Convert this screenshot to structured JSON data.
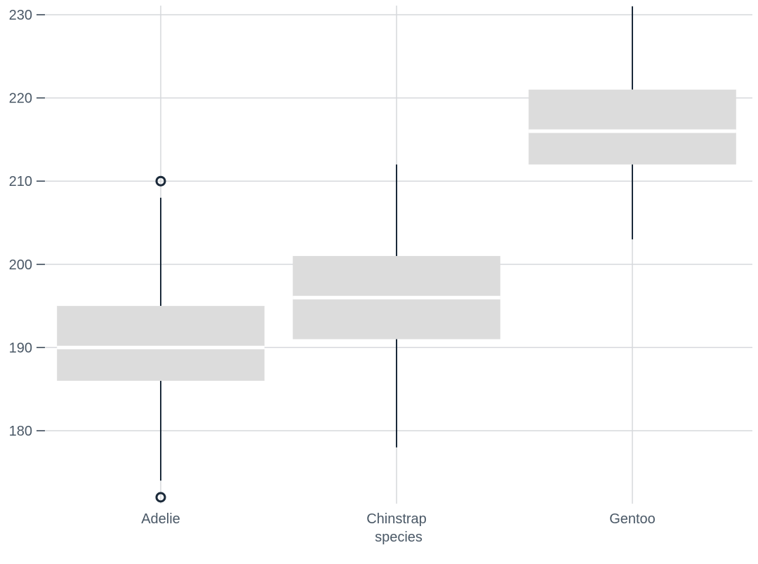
{
  "chart_data": {
    "type": "box",
    "xlabel": "species",
    "ylabel": "",
    "ylim": [
      171,
      231
    ],
    "yticks": [
      180,
      190,
      200,
      210,
      220,
      230
    ],
    "ytick_labels": [
      "180",
      "190",
      "200",
      "210",
      "220",
      "230"
    ],
    "grid": true,
    "categories": [
      "Adelie",
      "Chinstrap",
      "Gentoo"
    ],
    "boxes": [
      {
        "category": "Adelie",
        "whisker_low": 174,
        "q1": 186,
        "median": 190,
        "q3": 195,
        "whisker_high": 208,
        "outliers": [
          172,
          210
        ]
      },
      {
        "category": "Chinstrap",
        "whisker_low": 178,
        "q1": 191,
        "median": 196,
        "q3": 201,
        "whisker_high": 212,
        "outliers": []
      },
      {
        "category": "Gentoo",
        "whisker_low": 203,
        "q1": 212,
        "median": 216,
        "q3": 221,
        "whisker_high": 231,
        "outliers": []
      }
    ],
    "colors": {
      "box": "#dcdcdc",
      "whisker": "#1b2a3a",
      "median": "#ffffff",
      "grid": "#d6d8dc",
      "text": "#4a5866"
    }
  }
}
